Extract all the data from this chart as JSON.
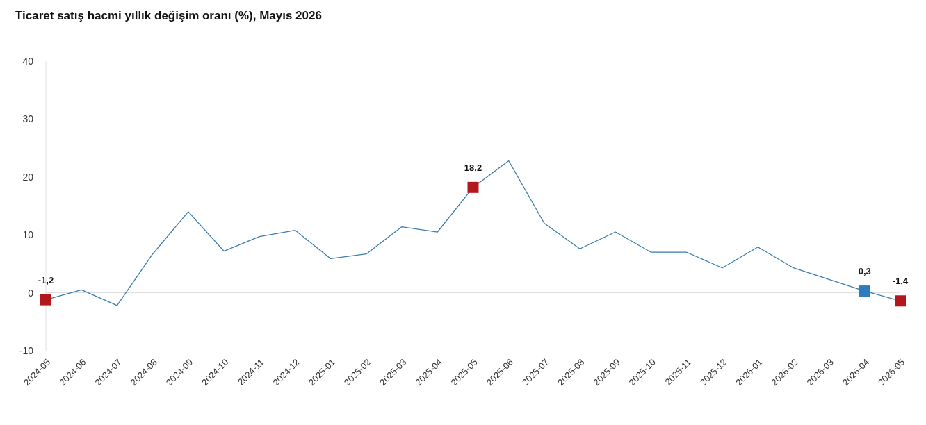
{
  "chart_data": {
    "type": "line",
    "title": "Ticaret satış hacmi yıllık değişim oranı (%), Mayıs 2026",
    "categories": [
      "2024-05",
      "2024-06",
      "2024-07",
      "2024-08",
      "2024-09",
      "2024-10",
      "2024-11",
      "2024-12",
      "2025-01",
      "2025-02",
      "2025-03",
      "2025-04",
      "2025-05",
      "2025-06",
      "2025-07",
      "2025-08",
      "2025-09",
      "2025-10",
      "2025-11",
      "2025-12",
      "2026-01",
      "2026-02",
      "2026-03",
      "2026-04",
      "2026-05"
    ],
    "series": [
      {
        "color": "#3a7dae",
        "marker": "none",
        "values": [
          -1.2,
          0.5,
          -2.2,
          6.7,
          14.0,
          7.2,
          9.7,
          10.8,
          5.9,
          6.7,
          11.4,
          10.5,
          18.2,
          22.8,
          12.0,
          7.6,
          10.5,
          7.0,
          7.0,
          4.3,
          7.9,
          4.3,
          2.3,
          0.3,
          -1.4
        ]
      },
      {
        "type": "scatter",
        "color": "#b3171d",
        "marker": "square",
        "values": [
          -1.2,
          null,
          null,
          null,
          null,
          null,
          null,
          null,
          null,
          null,
          null,
          null,
          18.2,
          null,
          null,
          null,
          null,
          null,
          null,
          null,
          null,
          null,
          null,
          null,
          -1.4
        ],
        "value_labels": [
          "-1,2",
          null,
          null,
          null,
          null,
          null,
          null,
          null,
          null,
          null,
          null,
          null,
          "18,2",
          null,
          null,
          null,
          null,
          null,
          null,
          null,
          null,
          null,
          null,
          null,
          "-1,4"
        ]
      },
      {
        "type": "scatter",
        "color": "#2e7bbf",
        "marker": "square",
        "values": [
          null,
          null,
          null,
          null,
          null,
          null,
          null,
          null,
          null,
          null,
          null,
          null,
          null,
          null,
          null,
          null,
          null,
          null,
          null,
          null,
          null,
          null,
          null,
          0.3,
          null
        ],
        "value_labels": [
          null,
          null,
          null,
          null,
          null,
          null,
          null,
          null,
          null,
          null,
          null,
          null,
          null,
          null,
          null,
          null,
          null,
          null,
          null,
          null,
          null,
          null,
          null,
          "0,3",
          null
        ]
      }
    ],
    "ylim": [
      -10,
      40
    ],
    "yticks": [
      -10,
      0,
      10,
      20,
      30,
      40
    ],
    "ref_lines": [
      {
        "axis": "y",
        "value": 0,
        "color": "#dcdcdc"
      }
    ],
    "grid": false
  }
}
